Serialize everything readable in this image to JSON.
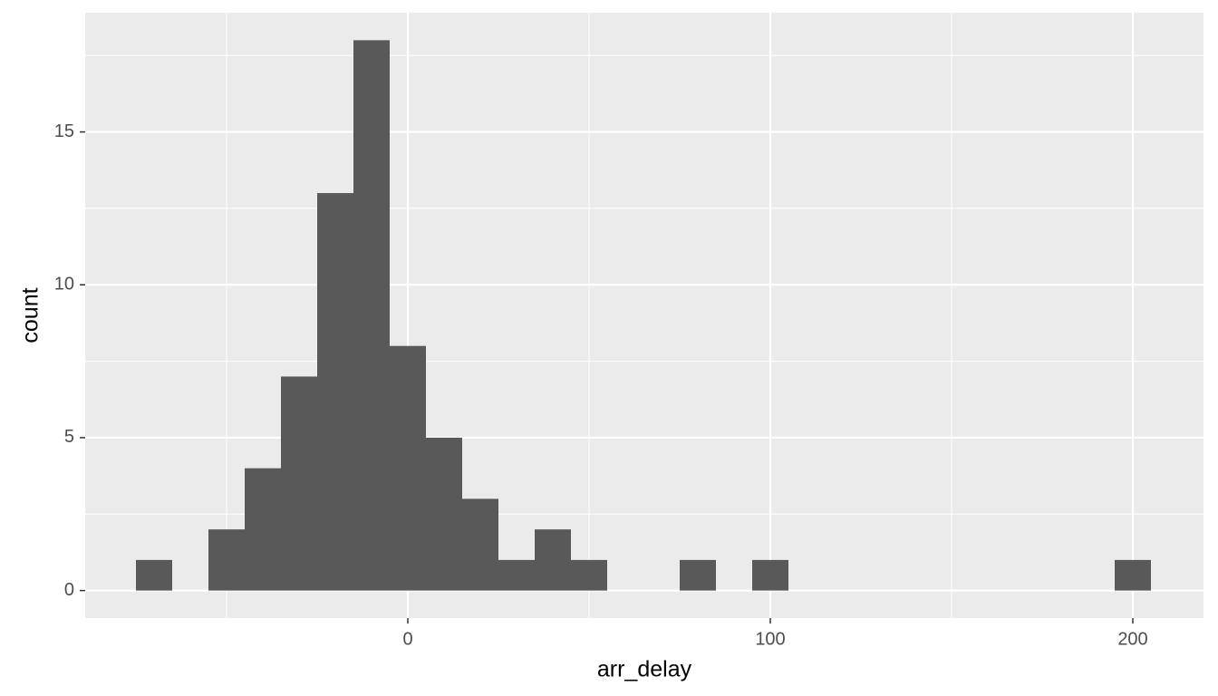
{
  "chart_data": {
    "type": "histogram",
    "x_label": "arr_delay",
    "y_label": "count",
    "bins": [
      -75,
      -65,
      -55,
      -45,
      -35,
      -25,
      -15,
      -5,
      5,
      15,
      25,
      35,
      45,
      55,
      65,
      75,
      85,
      95,
      105,
      115,
      125,
      135,
      145,
      155,
      165,
      175,
      185,
      195,
      205
    ],
    "values": [
      1,
      0,
      2,
      4,
      7,
      13,
      18,
      8,
      5,
      3,
      1,
      2,
      1,
      0,
      0,
      1,
      0,
      1,
      0,
      0,
      0,
      0,
      0,
      0,
      0,
      0,
      0,
      1
    ],
    "color": "#595959",
    "xlim": [
      -89,
      219.5
    ],
    "ylim": [
      -0.9,
      18.9
    ],
    "xticks": [
      0,
      100,
      200
    ],
    "yticks": [
      0,
      5,
      10,
      15
    ],
    "minor_xticks": [
      -50,
      50,
      150
    ],
    "minor_yticks": [
      2.5,
      7.5,
      12.5,
      17.5
    ],
    "grid": true,
    "panel_color": "#ebebeb",
    "grid_color": "#ffffff"
  }
}
